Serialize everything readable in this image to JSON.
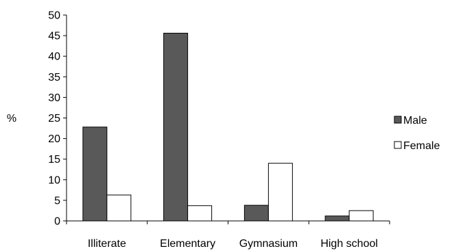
{
  "chart_data": {
    "type": "bar",
    "title": "",
    "xlabel": "",
    "ylabel": "%",
    "ylim": [
      0,
      50
    ],
    "yticks": [
      0,
      5,
      10,
      15,
      20,
      25,
      30,
      35,
      40,
      45,
      50
    ],
    "grid": false,
    "legend_position": "right",
    "categories": [
      "Illiterate",
      "Elementary",
      "Gymnasium",
      "High school"
    ],
    "series": [
      {
        "name": "Male",
        "values": [
          22.8,
          45.6,
          3.8,
          1.2
        ],
        "color": "#595959"
      },
      {
        "name": "Female",
        "values": [
          6.3,
          3.7,
          14.0,
          2.5
        ],
        "color": "#ffffff"
      }
    ]
  }
}
